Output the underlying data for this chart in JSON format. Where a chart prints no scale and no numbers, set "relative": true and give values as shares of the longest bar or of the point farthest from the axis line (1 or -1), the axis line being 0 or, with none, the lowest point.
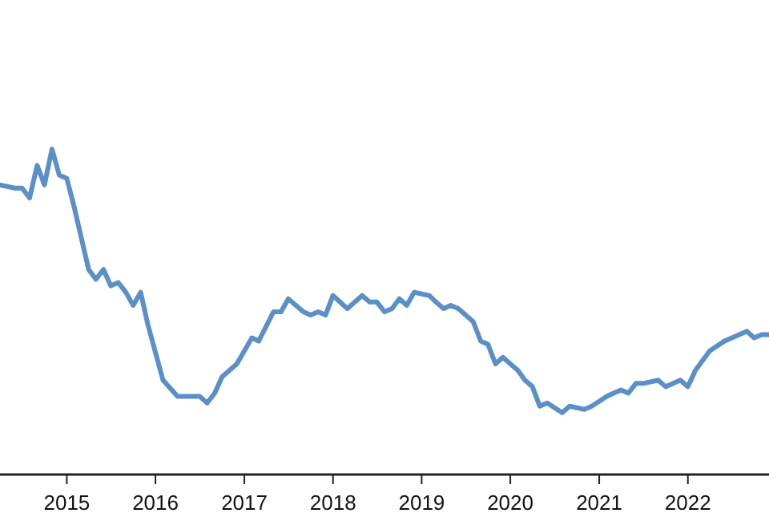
{
  "chart_data": {
    "type": "line",
    "relative": true,
    "xlim": [
      "2014-04-01",
      "2022-12-01"
    ],
    "xticks": [
      {
        "value": "2015-01-01",
        "label": "2015"
      },
      {
        "value": "2016-01-01",
        "label": "2016"
      },
      {
        "value": "2017-01-01",
        "label": "2017"
      },
      {
        "value": "2018-01-01",
        "label": "2018"
      },
      {
        "value": "2019-01-01",
        "label": "2019"
      },
      {
        "value": "2020-01-01",
        "label": "2020"
      },
      {
        "value": "2021-01-01",
        "label": "2021"
      },
      {
        "value": "2022-01-01",
        "label": "2022"
      }
    ],
    "x": [
      "2014-04",
      "2014-06",
      "2014-07",
      "2014-08",
      "2014-09",
      "2014-10",
      "2014-11",
      "2014-12",
      "2015-01",
      "2015-02",
      "2015-04",
      "2015-05",
      "2015-06",
      "2015-07",
      "2015-08",
      "2015-09",
      "2015-10",
      "2015-11",
      "2015-12",
      "2016-02",
      "2016-04",
      "2016-07",
      "2016-08",
      "2016-09",
      "2016-10",
      "2016-12",
      "2017-02",
      "2017-03",
      "2017-05",
      "2017-06",
      "2017-07",
      "2017-09",
      "2017-10",
      "2017-11",
      "2017-12",
      "2018-01",
      "2018-03",
      "2018-05",
      "2018-06",
      "2018-07",
      "2018-08",
      "2018-09",
      "2018-10",
      "2018-11",
      "2018-12",
      "2019-02",
      "2019-03",
      "2019-04",
      "2019-05",
      "2019-06",
      "2019-08",
      "2019-09",
      "2019-10",
      "2019-11",
      "2019-12",
      "2020-02",
      "2020-03",
      "2020-04",
      "2020-05",
      "2020-06",
      "2020-08",
      "2020-09",
      "2020-11",
      "2020-12",
      "2021-02",
      "2021-03",
      "2021-04",
      "2021-05",
      "2021-06",
      "2021-07",
      "2021-09",
      "2021-10",
      "2021-12",
      "2022-01",
      "2022-02",
      "2022-04",
      "2022-06",
      "2022-07",
      "2022-09",
      "2022-10",
      "2022-11",
      "2022-12"
    ],
    "series": [
      {
        "color": "#5b8fc7",
        "values": [
          0.89,
          0.88,
          0.88,
          0.85,
          0.95,
          0.89,
          1.0,
          0.92,
          0.91,
          0.82,
          0.63,
          0.6,
          0.63,
          0.58,
          0.59,
          0.56,
          0.52,
          0.56,
          0.46,
          0.29,
          0.24,
          0.24,
          0.22,
          0.25,
          0.3,
          0.34,
          0.42,
          0.41,
          0.5,
          0.5,
          0.54,
          0.5,
          0.49,
          0.5,
          0.49,
          0.55,
          0.51,
          0.55,
          0.53,
          0.53,
          0.5,
          0.51,
          0.54,
          0.52,
          0.56,
          0.55,
          0.53,
          0.51,
          0.52,
          0.51,
          0.47,
          0.41,
          0.4,
          0.34,
          0.36,
          0.32,
          0.29,
          0.27,
          0.21,
          0.22,
          0.19,
          0.21,
          0.2,
          0.21,
          0.24,
          0.25,
          0.26,
          0.25,
          0.28,
          0.28,
          0.29,
          0.27,
          0.29,
          0.27,
          0.32,
          0.38,
          0.41,
          0.42,
          0.44,
          0.42,
          0.43,
          0.43
        ]
      }
    ]
  }
}
